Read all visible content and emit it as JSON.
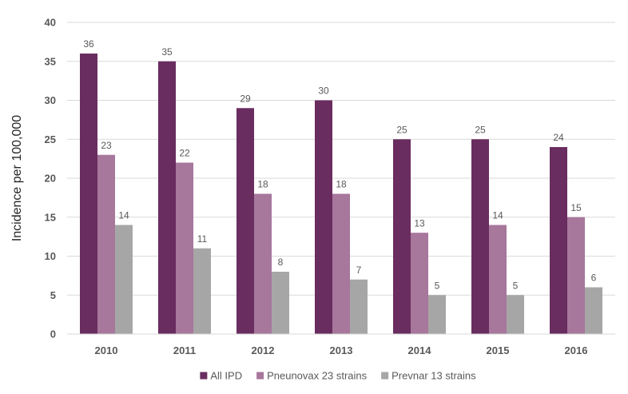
{
  "chart_data": {
    "type": "bar",
    "title": "",
    "xlabel": "",
    "ylabel": "Incidence per 100,000",
    "ylim": [
      0,
      40
    ],
    "yticks": [
      0,
      5,
      10,
      15,
      20,
      25,
      30,
      35,
      40
    ],
    "categories": [
      "2010",
      "2011",
      "2012",
      "2013",
      "2014",
      "2015",
      "2016"
    ],
    "series": [
      {
        "name": "All IPD",
        "color": "#6a2d60",
        "values": [
          36,
          35,
          29,
          30,
          25,
          25,
          24
        ]
      },
      {
        "name": "Pneunovax 23 strains",
        "color": "#a7779c",
        "values": [
          23,
          22,
          18,
          18,
          13,
          14,
          15
        ]
      },
      {
        "name": "Prevnar 13 strains",
        "color": "#a6a6a6",
        "values": [
          14,
          11,
          8,
          7,
          5,
          5,
          6
        ]
      }
    ],
    "grid": true,
    "legend": "bottom",
    "data_labels": true
  }
}
